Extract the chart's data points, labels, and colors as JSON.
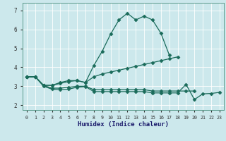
{
  "title": "",
  "xlabel": "Humidex (Indice chaleur)",
  "ylabel": "",
  "background_color": "#cce8ec",
  "line_color": "#1a6b5a",
  "grid_color": "#b0d4d8",
  "x_ticks": [
    0,
    1,
    2,
    3,
    4,
    5,
    6,
    7,
    8,
    9,
    10,
    11,
    12,
    13,
    14,
    15,
    16,
    17,
    18,
    19,
    20,
    21,
    22,
    23
  ],
  "y_ticks": [
    2,
    3,
    4,
    5,
    6,
    7
  ],
  "ylim": [
    1.75,
    7.4
  ],
  "xlim": [
    -0.5,
    23.5
  ],
  "line1_x": [
    0,
    1,
    2,
    3,
    4,
    5,
    6,
    7,
    8,
    9,
    10,
    11,
    12,
    13,
    14,
    15,
    16,
    17
  ],
  "line1_y": [
    3.5,
    3.5,
    3.05,
    3.05,
    3.2,
    3.3,
    3.3,
    3.2,
    4.1,
    4.85,
    5.75,
    6.5,
    6.85,
    6.5,
    6.7,
    6.5,
    5.8,
    4.65
  ],
  "line2_x": [
    0,
    1,
    2,
    3,
    4,
    5,
    6,
    7,
    8,
    9,
    10,
    11,
    12,
    13,
    14,
    15,
    16,
    17,
    18
  ],
  "line2_y": [
    3.5,
    3.5,
    3.05,
    3.05,
    3.15,
    3.25,
    3.3,
    3.2,
    3.5,
    3.65,
    3.75,
    3.85,
    3.95,
    4.05,
    4.15,
    4.25,
    4.35,
    4.45,
    4.55
  ],
  "line3_x": [
    0,
    1,
    2,
    3,
    4,
    5,
    6,
    7,
    8,
    9,
    10,
    11,
    12,
    13,
    14,
    15,
    16,
    17,
    18,
    19,
    20
  ],
  "line3_y": [
    3.5,
    3.5,
    3.05,
    2.9,
    2.9,
    2.95,
    3.0,
    3.0,
    2.82,
    2.82,
    2.82,
    2.82,
    2.82,
    2.82,
    2.82,
    2.75,
    2.75,
    2.75,
    2.75,
    2.75,
    2.75
  ],
  "line4_x": [
    0,
    1,
    2,
    3,
    4,
    5,
    6,
    7,
    8,
    9,
    10,
    11,
    12,
    13,
    14,
    15,
    16,
    17,
    18,
    19,
    20,
    21,
    22,
    23
  ],
  "line4_y": [
    3.5,
    3.5,
    3.0,
    2.85,
    2.82,
    2.85,
    2.95,
    2.98,
    2.72,
    2.72,
    2.72,
    2.72,
    2.72,
    2.72,
    2.72,
    2.65,
    2.65,
    2.65,
    2.65,
    3.1,
    2.3,
    2.6,
    2.62,
    2.68
  ],
  "marker_pts_l1": [
    0,
    1,
    2,
    3,
    7,
    8,
    9,
    10,
    11,
    12,
    13,
    14,
    15,
    16,
    17
  ],
  "marker_pts_l2": [
    0,
    1,
    7,
    8,
    9,
    10,
    11,
    12,
    13,
    14,
    15,
    16,
    17,
    18
  ],
  "marker_pts_l3": [
    0,
    1,
    2,
    3,
    7,
    8
  ],
  "marker_pts_l4": [
    19,
    20,
    21,
    22,
    23
  ]
}
